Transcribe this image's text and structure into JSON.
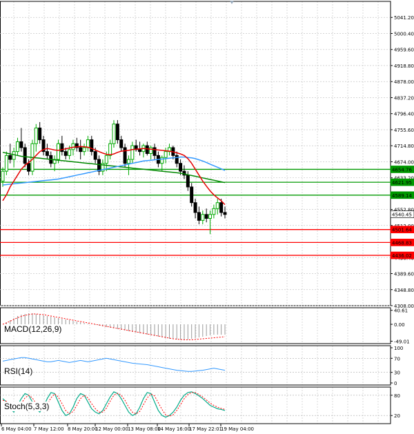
{
  "chart_data": {
    "type": "candlestick",
    "main": {
      "y_ticks": [
        "5041.20",
        "5000.40",
        "4959.60",
        "4918.80",
        "4878.00",
        "4837.20",
        "4796.40",
        "4755.60",
        "4714.80",
        "4674.00",
        "4633.20",
        "4552.80",
        "4512.00",
        "4430.40",
        "4389.60",
        "4348.80",
        "4308.00"
      ],
      "y_range": [
        4308.0,
        5082.0
      ],
      "price_labels": [
        {
          "text": "4654.76",
          "value": 4654.76,
          "color": "#009900"
        },
        {
          "text": "4621.95",
          "value": 4621.95,
          "color": "#009900"
        },
        {
          "text": "4589.14",
          "value": 4589.14,
          "color": "#009900"
        },
        {
          "text": "4540.45",
          "value": 4540.45,
          "color": "#000000"
        },
        {
          "text": "4501.64",
          "value": 4501.64,
          "color": "#ff0000"
        },
        {
          "text": "4468.83",
          "value": 4468.83,
          "color": "#ff0000"
        },
        {
          "text": "4436.02",
          "value": 4436.02,
          "color": "#ff0000"
        }
      ],
      "candles": [
        [
          4625,
          4660,
          4610,
          4650
        ],
        [
          4650,
          4700,
          4640,
          4690
        ],
        [
          4690,
          4720,
          4670,
          4680
        ],
        [
          4680,
          4710,
          4660,
          4700
        ],
        [
          4700,
          4735,
          4690,
          4725
        ],
        [
          4725,
          4760,
          4700,
          4710
        ],
        [
          4710,
          4720,
          4660,
          4670
        ],
        [
          4670,
          4680,
          4640,
          4650
        ],
        [
          4650,
          4730,
          4640,
          4720
        ],
        [
          4720,
          4770,
          4700,
          4760
        ],
        [
          4760,
          4775,
          4720,
          4730
        ],
        [
          4730,
          4740,
          4690,
          4700
        ],
        [
          4700,
          4720,
          4680,
          4690
        ],
        [
          4690,
          4700,
          4660,
          4670
        ],
        [
          4670,
          4690,
          4650,
          4680
        ],
        [
          4680,
          4730,
          4670,
          4720
        ],
        [
          4720,
          4740,
          4690,
          4700
        ],
        [
          4700,
          4710,
          4680,
          4690
        ],
        [
          4690,
          4715,
          4680,
          4705
        ],
        [
          4705,
          4730,
          4690,
          4720
        ],
        [
          4720,
          4735,
          4700,
          4710
        ],
        [
          4710,
          4730,
          4680,
          4700
        ],
        [
          4700,
          4720,
          4690,
          4710
        ],
        [
          4710,
          4740,
          4700,
          4730
        ],
        [
          4730,
          4740,
          4690,
          4700
        ],
        [
          4700,
          4710,
          4670,
          4680
        ],
        [
          4680,
          4690,
          4640,
          4650
        ],
        [
          4650,
          4680,
          4640,
          4670
        ],
        [
          4670,
          4700,
          4650,
          4690
        ],
        [
          4690,
          4730,
          4680,
          4720
        ],
        [
          4720,
          4780,
          4710,
          4770
        ],
        [
          4770,
          4780,
          4720,
          4730
        ],
        [
          4730,
          4740,
          4700,
          4710
        ],
        [
          4710,
          4720,
          4660,
          4670
        ],
        [
          4670,
          4690,
          4640,
          4680
        ],
        [
          4680,
          4725,
          4670,
          4715
        ],
        [
          4715,
          4730,
          4700,
          4705
        ],
        [
          4705,
          4725,
          4690,
          4700
        ],
        [
          4700,
          4720,
          4685,
          4715
        ],
        [
          4715,
          4725,
          4690,
          4695
        ],
        [
          4695,
          4715,
          4680,
          4710
        ],
        [
          4710,
          4720,
          4680,
          4690
        ],
        [
          4690,
          4700,
          4660,
          4670
        ],
        [
          4670,
          4690,
          4650,
          4685
        ],
        [
          4685,
          4710,
          4670,
          4700
        ],
        [
          4700,
          4720,
          4690,
          4710
        ],
        [
          4710,
          4715,
          4680,
          4690
        ],
        [
          4690,
          4700,
          4660,
          4670
        ],
        [
          4670,
          4680,
          4640,
          4650
        ],
        [
          4650,
          4665,
          4630,
          4640
        ],
        [
          4640,
          4650,
          4600,
          4610
        ],
        [
          4610,
          4620,
          4560,
          4570
        ],
        [
          4570,
          4580,
          4530,
          4545
        ],
        [
          4545,
          4560,
          4515,
          4525
        ],
        [
          4525,
          4550,
          4515,
          4540
        ],
        [
          4540,
          4555,
          4520,
          4530
        ],
        [
          4530,
          4550,
          4490,
          4540
        ],
        [
          4540,
          4565,
          4530,
          4555
        ],
        [
          4555,
          4580,
          4540,
          4570
        ],
        [
          4570,
          4580,
          4535,
          4545
        ],
        [
          4545,
          4560,
          4530,
          4540
        ]
      ],
      "ma_red": [
        4575,
        4590,
        4610,
        4625,
        4640,
        4655,
        4665,
        4672,
        4680,
        4690,
        4700,
        4705,
        4708,
        4706,
        4704,
        4703,
        4705,
        4707,
        4709,
        4711,
        4712,
        4713,
        4712,
        4711,
        4708,
        4704,
        4700,
        4696,
        4693,
        4692,
        4694,
        4698,
        4701,
        4702,
        4703,
        4705,
        4706,
        4707,
        4708,
        4707,
        4706,
        4705,
        4704,
        4703,
        4702,
        4701,
        4699,
        4697,
        4694,
        4690,
        4682,
        4670,
        4655,
        4640,
        4625,
        4612,
        4600,
        4590,
        4582,
        4575,
        4565
      ],
      "ma_blue": [
        4615,
        4616,
        4617,
        4618,
        4619,
        4620,
        4621,
        4622,
        4623,
        4624,
        4625,
        4626,
        4627,
        4628,
        4629,
        4630,
        4632,
        4634,
        4636,
        4638,
        4640,
        4642,
        4644,
        4646,
        4648,
        4650,
        4652,
        4654,
        4656,
        4658,
        4660,
        4662,
        4664,
        4666,
        4668,
        4670,
        4672,
        4674,
        4676,
        4677,
        4678,
        4679,
        4680,
        4681,
        4682,
        4683,
        4684,
        4685,
        4686,
        4686,
        4685,
        4684,
        4682,
        4679,
        4676,
        4672,
        4668,
        4664,
        4660,
        4656,
        4652
      ],
      "ma_green": [
        4698,
        4696,
        4694,
        4692,
        4690,
        4688,
        4687,
        4686,
        4685,
        4684,
        4683,
        4682,
        4681,
        4680,
        4679,
        4678,
        4677,
        4676,
        4675,
        4674,
        4673,
        4672,
        4671,
        4670,
        4669,
        4668,
        4667,
        4666,
        4665,
        4664,
        4663,
        4662,
        4661,
        4660,
        4659,
        4658,
        4657,
        4656,
        4655,
        4654,
        4653,
        4652,
        4651,
        4650,
        4649,
        4648,
        4647,
        4646,
        4645,
        4643,
        4641,
        4639,
        4637,
        4635,
        4633,
        4631,
        4629,
        4627,
        4625,
        4623,
        4621
      ]
    },
    "macd": {
      "label": "MACD(12,26,9)",
      "y_ticks": [
        "40.61",
        "0.00",
        "-49.01"
      ],
      "y_range": [
        -56,
        48
      ],
      "hist": [
        0,
        6,
        12,
        18,
        24,
        28,
        30,
        32,
        32,
        30,
        28,
        26,
        24,
        22,
        20,
        18,
        16,
        14,
        12,
        10,
        8,
        6,
        4,
        2,
        0,
        -2,
        -4,
        -6,
        -8,
        -10,
        -12,
        -14,
        -16,
        -18,
        -20,
        -22,
        -24,
        -26,
        -28,
        -30,
        -32,
        -34,
        -36,
        -38,
        -40,
        -42,
        -43,
        -44,
        -45,
        -45,
        -44,
        -42,
        -40,
        -38,
        -36,
        -34,
        -32,
        -30,
        -30,
        -30,
        -30
      ],
      "signal": [
        0,
        4,
        9,
        14,
        19,
        23,
        26,
        28,
        30,
        30,
        29,
        28,
        26,
        24,
        22,
        20,
        18,
        16,
        14,
        12,
        10,
        8,
        6,
        4,
        2,
        0,
        -2,
        -4,
        -6,
        -8,
        -10,
        -12,
        -14,
        -16,
        -18,
        -20,
        -22,
        -24,
        -26,
        -28,
        -30,
        -32,
        -34,
        -36,
        -38,
        -40,
        -42,
        -43,
        -44,
        -45,
        -45,
        -45,
        -44,
        -43,
        -42,
        -41,
        -40,
        -39,
        -38,
        -37,
        -36
      ]
    },
    "rsi": {
      "label": "RSI(14)",
      "y_ticks": [
        "100",
        "70",
        "30",
        "0"
      ],
      "y_range": [
        0,
        100
      ],
      "levels": [
        70,
        30
      ],
      "values": [
        62,
        64,
        66,
        68,
        70,
        72,
        72,
        70,
        68,
        66,
        64,
        62,
        60,
        60,
        62,
        64,
        62,
        60,
        58,
        60,
        62,
        64,
        62,
        60,
        62,
        64,
        66,
        68,
        70,
        68,
        66,
        64,
        62,
        60,
        58,
        56,
        55,
        54,
        53,
        52,
        50,
        48,
        46,
        44,
        42,
        40,
        38,
        36,
        35,
        34,
        33,
        33,
        34,
        35,
        36,
        38,
        40,
        42,
        40,
        38,
        36
      ]
    },
    "stoch": {
      "label": "Stoch(5,3,3)",
      "y_ticks": [
        "80",
        "20"
      ],
      "y_range": [
        0,
        100
      ],
      "levels": [
        80,
        20
      ],
      "k": [
        70,
        60,
        40,
        30,
        50,
        70,
        85,
        80,
        60,
        40,
        30,
        45,
        70,
        88,
        85,
        60,
        35,
        20,
        25,
        45,
        70,
        85,
        80,
        60,
        40,
        30,
        25,
        35,
        55,
        75,
        90,
        85,
        70,
        50,
        30,
        20,
        25,
        45,
        70,
        88,
        85,
        60,
        35,
        20,
        15,
        20,
        30,
        45,
        65,
        80,
        88,
        90,
        85,
        78,
        70,
        60,
        50,
        45,
        40,
        38,
        35
      ],
      "d": [
        65,
        62,
        50,
        38,
        40,
        55,
        72,
        80,
        72,
        55,
        40,
        38,
        52,
        72,
        84,
        75,
        55,
        35,
        25,
        32,
        50,
        70,
        80,
        72,
        55,
        40,
        30,
        30,
        42,
        62,
        80,
        86,
        80,
        65,
        45,
        30,
        25,
        32,
        52,
        72,
        84,
        78,
        58,
        38,
        22,
        18,
        22,
        35,
        52,
        70,
        82,
        88,
        88,
        82,
        75,
        66,
        57,
        50,
        45,
        41,
        38
      ]
    },
    "x_labels": [
      "6 May 04:00",
      "7 May 12:00",
      "8 May 20:00",
      "12 May 00:00",
      "13 May 08:00",
      "14 May 16:00",
      "17 May 22:01",
      "19 May 04:00"
    ]
  },
  "colors": {
    "bull": "#00aa00",
    "bear": "#000000",
    "ma_red": "#e60000",
    "ma_blue": "#3399ff",
    "ma_green": "#008800",
    "grid": "#c8c8c8",
    "support": "#ff0000",
    "resistance": "#009900"
  },
  "indicator_labels": {
    "macd": "MACD(12,26,9)",
    "rsi": "RSI(14)",
    "stoch": "Stoch(5,3,3)"
  }
}
